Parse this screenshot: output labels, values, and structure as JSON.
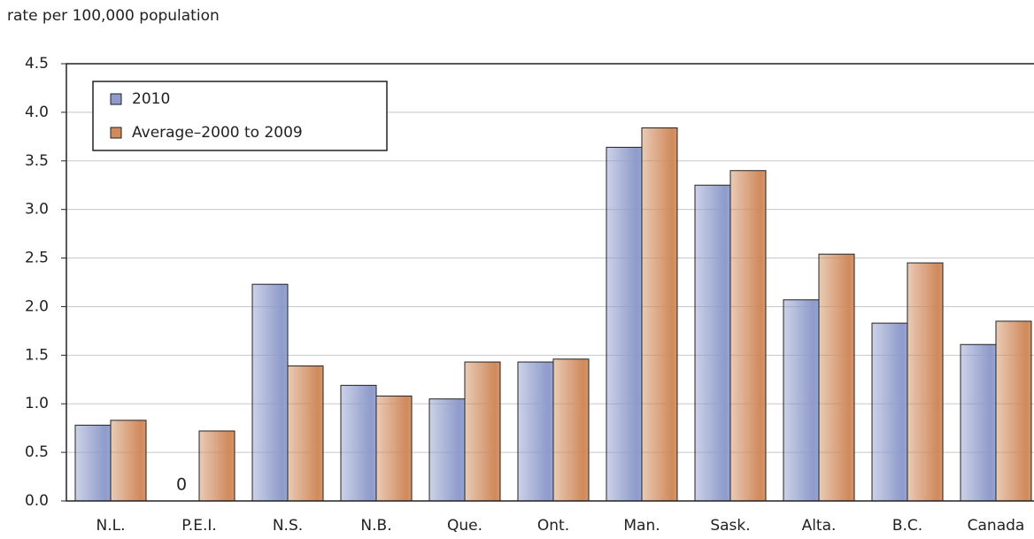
{
  "chart_data": {
    "type": "bar",
    "y_axis_label": "rate per 100,000 population",
    "categories": [
      "N.L.",
      "P.E.I.",
      "N.S.",
      "N.B.",
      "Que.",
      "Ont.",
      "Man.",
      "Sask.",
      "Alta.",
      "B.C.",
      "Canada"
    ],
    "series": [
      {
        "name": "2010",
        "color": "#8e9bcb",
        "values": [
          0.78,
          0,
          2.23,
          1.19,
          1.05,
          1.43,
          3.64,
          3.25,
          2.07,
          1.83,
          1.61
        ]
      },
      {
        "name": "Average–2000 to 2009",
        "color": "#d08a5c",
        "values": [
          0.83,
          0.72,
          1.39,
          1.08,
          1.43,
          1.46,
          3.84,
          3.4,
          2.54,
          2.45,
          1.85
        ]
      }
    ],
    "ylim": [
      0,
      4.5
    ],
    "yticks": [
      {
        "value": 0,
        "label": "0.0"
      },
      0.5,
      {
        "value": 1,
        "label": "1.0"
      },
      1.5,
      {
        "value": 2,
        "label": "2.0"
      },
      2.5,
      {
        "value": 3,
        "label": "3.0"
      },
      3.5,
      {
        "value": 4,
        "label": "4.0"
      },
      4.5
    ],
    "grid": true,
    "legend": "upper left"
  }
}
